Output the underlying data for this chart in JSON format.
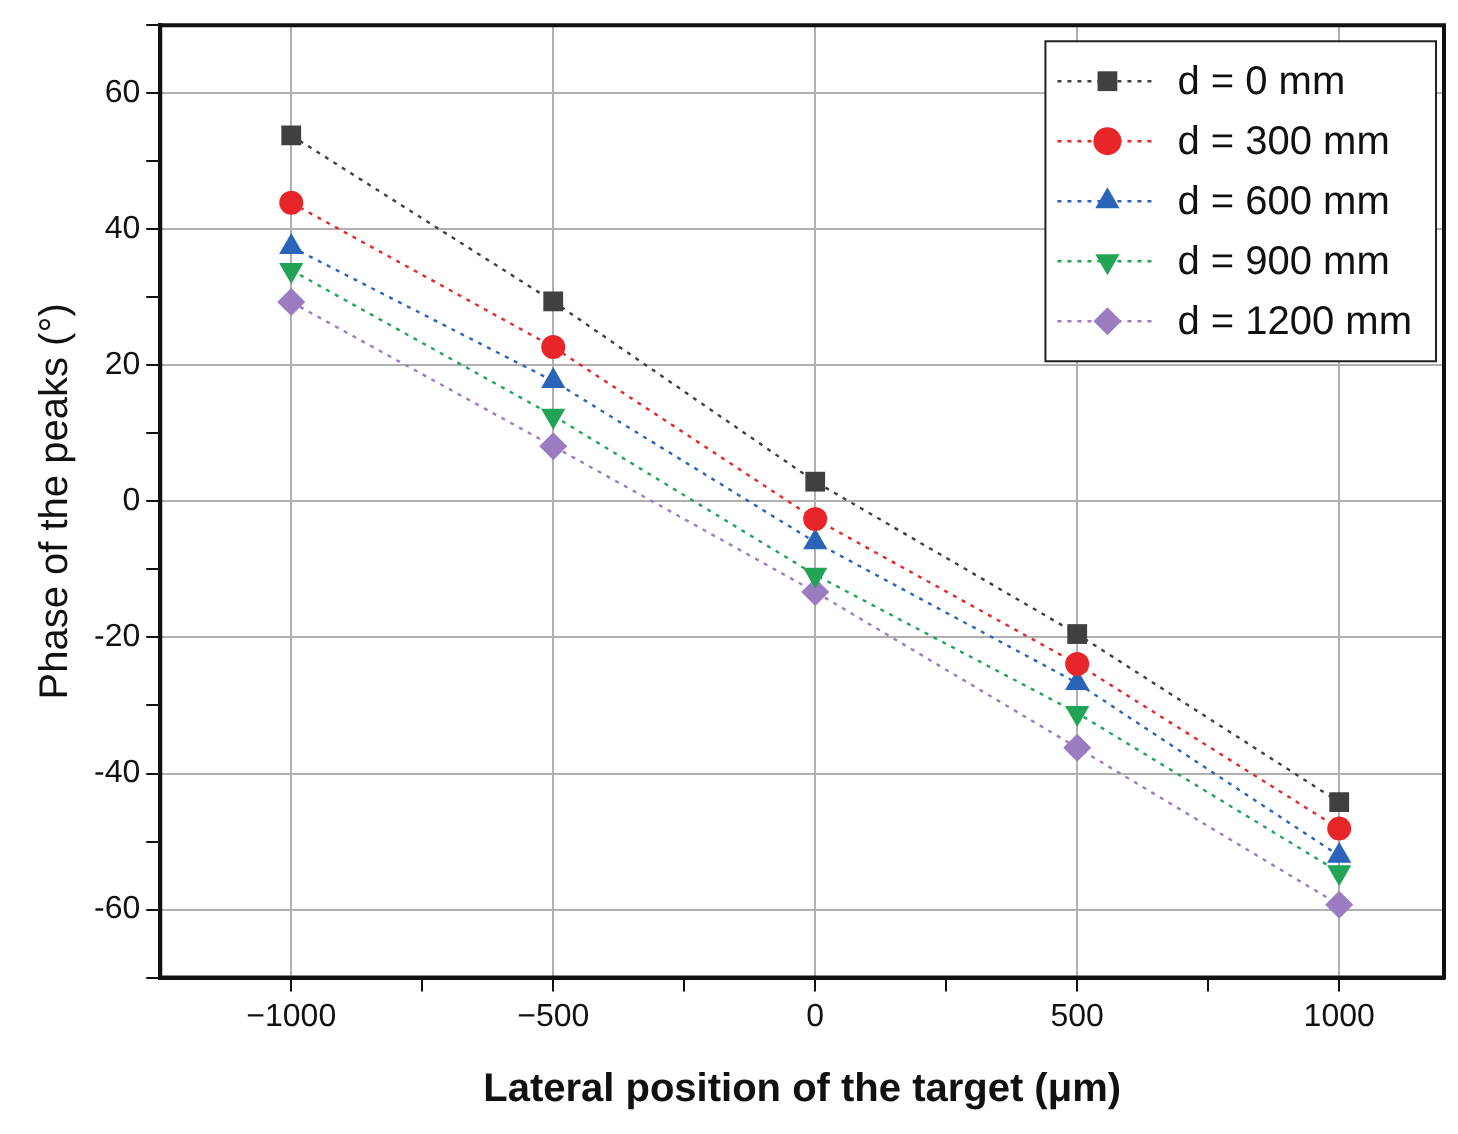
{
  "chart_data": {
    "type": "line",
    "xlabel": "Lateral position of the target (μm)",
    "ylabel": "Phase of the peaks (°)",
    "x": [
      -1000,
      -500,
      0,
      500,
      1000
    ],
    "xlim": [
      -1250,
      1200
    ],
    "xticks": [
      {
        "value": -1000,
        "label": "−1000"
      },
      {
        "value": -750,
        "label": null
      },
      {
        "value": -500,
        "label": "−500"
      },
      {
        "value": -250,
        "label": null
      },
      0,
      {
        "value": 250,
        "label": null
      },
      500,
      {
        "value": 750,
        "label": null
      },
      1000
    ],
    "ylim": [
      -70,
      70
    ],
    "yticks": [
      {
        "value": -70,
        "label": null
      },
      -60,
      {
        "value": -50,
        "label": null
      },
      -40,
      {
        "value": -30,
        "label": null
      },
      -20,
      {
        "value": -10,
        "label": null
      },
      0,
      {
        "value": 10,
        "label": null
      },
      20,
      {
        "value": 30,
        "label": null
      },
      40,
      {
        "value": 50,
        "label": null
      },
      60,
      {
        "value": 70,
        "label": null
      }
    ],
    "grid": true,
    "legend": "top right",
    "line_style": "dotted",
    "series": [
      {
        "name": "d = 0 mm",
        "color": "#404040",
        "marker": "square",
        "values": [
          53.8,
          29.4,
          2.9,
          -19.5,
          -44.2
        ]
      },
      {
        "name": "d = 300 mm",
        "color": "#e8262a",
        "marker": "circle",
        "values": [
          43.9,
          22.7,
          -2.6,
          -23.9,
          -48.1
        ]
      },
      {
        "name": "d = 600 mm",
        "color": "#2a64b8",
        "marker": "triangle",
        "values": [
          37.4,
          17.7,
          -6.0,
          -26.7,
          -52.1
        ]
      },
      {
        "name": "d = 900 mm",
        "color": "#22a457",
        "marker": "triangle-down",
        "values": [
          34.0,
          12.6,
          -10.8,
          -31.1,
          -54.5
        ]
      },
      {
        "name": "d = 1200 mm",
        "color": "#9b7cc0",
        "marker": "diamond",
        "values": [
          29.3,
          8.1,
          -13.3,
          -36.2,
          -59.3
        ]
      }
    ]
  }
}
